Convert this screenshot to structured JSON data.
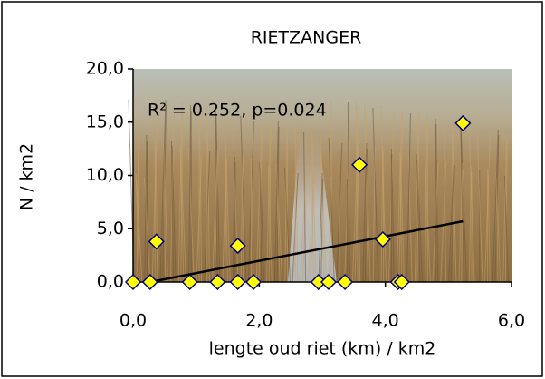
{
  "chart_data": {
    "type": "scatter",
    "title": "RIETZANGER",
    "x_label": "lengte oud riet (km) / km2",
    "y_label": "N / km2",
    "annotation": "R² = 0.252, p=0.024",
    "series": [
      {
        "name": "RIETZANGER",
        "color": "#ffff00",
        "x": [
          0,
          0.27,
          0.37,
          0.9,
          1.34,
          1.66,
          1.66,
          1.91,
          2.94,
          3.1,
          3.36,
          3.59,
          3.96,
          4.2,
          4.26,
          5.23
        ],
        "values": [
          0,
          0,
          3.8,
          0,
          0,
          3.4,
          0,
          0,
          0,
          0,
          0,
          11,
          4.0,
          0,
          0,
          14.9
        ]
      }
    ],
    "trendline": {
      "x": [
        0.27,
        5.23
      ],
      "values": [
        0,
        5.7
      ]
    },
    "xlim": [
      0,
      6
    ],
    "ylim": [
      0,
      20
    ],
    "xticks": [
      {
        "value": 0,
        "label": "0,0"
      },
      {
        "value": 2,
        "label": "2,0"
      },
      {
        "value": 4,
        "label": "4,0"
      },
      {
        "value": 6,
        "label": "6,0"
      }
    ],
    "yticks": [
      {
        "value": 0,
        "label": "0,0"
      },
      {
        "value": 5,
        "label": "5,0"
      },
      {
        "value": 10,
        "label": "10,0"
      },
      {
        "value": 15,
        "label": "15,0"
      },
      {
        "value": 20,
        "label": "20,0"
      }
    ]
  }
}
